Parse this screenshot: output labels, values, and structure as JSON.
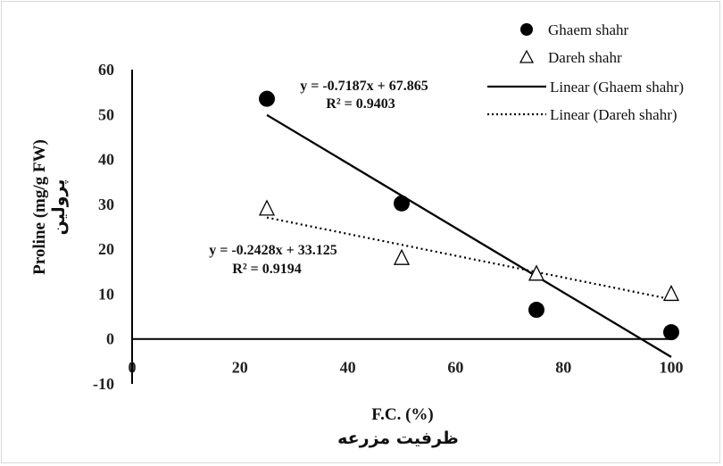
{
  "chart_data": {
    "type": "scatter",
    "xlabel": "F.C. (%)",
    "xlabel_fa": "ظرفیت مزرعه",
    "ylabel": "Proline (mg/g FW)",
    "ylabel_fa": "پرولین",
    "xlim": [
      0,
      100
    ],
    "ylim": [
      -10,
      60
    ],
    "x_ticks": [
      "0",
      "20",
      "40",
      "60",
      "80",
      "100"
    ],
    "y_ticks": [
      "-10",
      "0",
      "10",
      "20",
      "30",
      "40",
      "50",
      "60"
    ],
    "series": [
      {
        "name": "Ghaem shahr",
        "marker": "filled-circle",
        "color": "#000000",
        "points": [
          {
            "x": 25,
            "y": 53.5
          },
          {
            "x": 50,
            "y": 30.2
          },
          {
            "x": 75,
            "y": 6.5
          },
          {
            "x": 100,
            "y": 1.5
          }
        ]
      },
      {
        "name": "Dareh shahr",
        "marker": "open-triangle",
        "color": "#000000",
        "points": [
          {
            "x": 25,
            "y": 29.0
          },
          {
            "x": 50,
            "y": 18.0
          },
          {
            "x": 75,
            "y": 14.5
          },
          {
            "x": 100,
            "y": 10.0
          }
        ]
      }
    ],
    "trendlines": [
      {
        "name": "Linear (Ghaem shahr)",
        "style": "solid",
        "slope": -0.7187,
        "intercept": 67.865,
        "x_range": [
          25,
          100
        ],
        "equation": "y = -0.7187x + 67.865",
        "r2": "R² = 0.9403"
      },
      {
        "name": "Linear (Dareh shahr)",
        "style": "dotted",
        "slope": -0.2428,
        "intercept": 33.125,
        "x_range": [
          25,
          100
        ],
        "equation": "y = -0.2428x + 33.125",
        "r2": "R² = 0.9194"
      }
    ],
    "legend_position": "top-right",
    "grid": false
  }
}
